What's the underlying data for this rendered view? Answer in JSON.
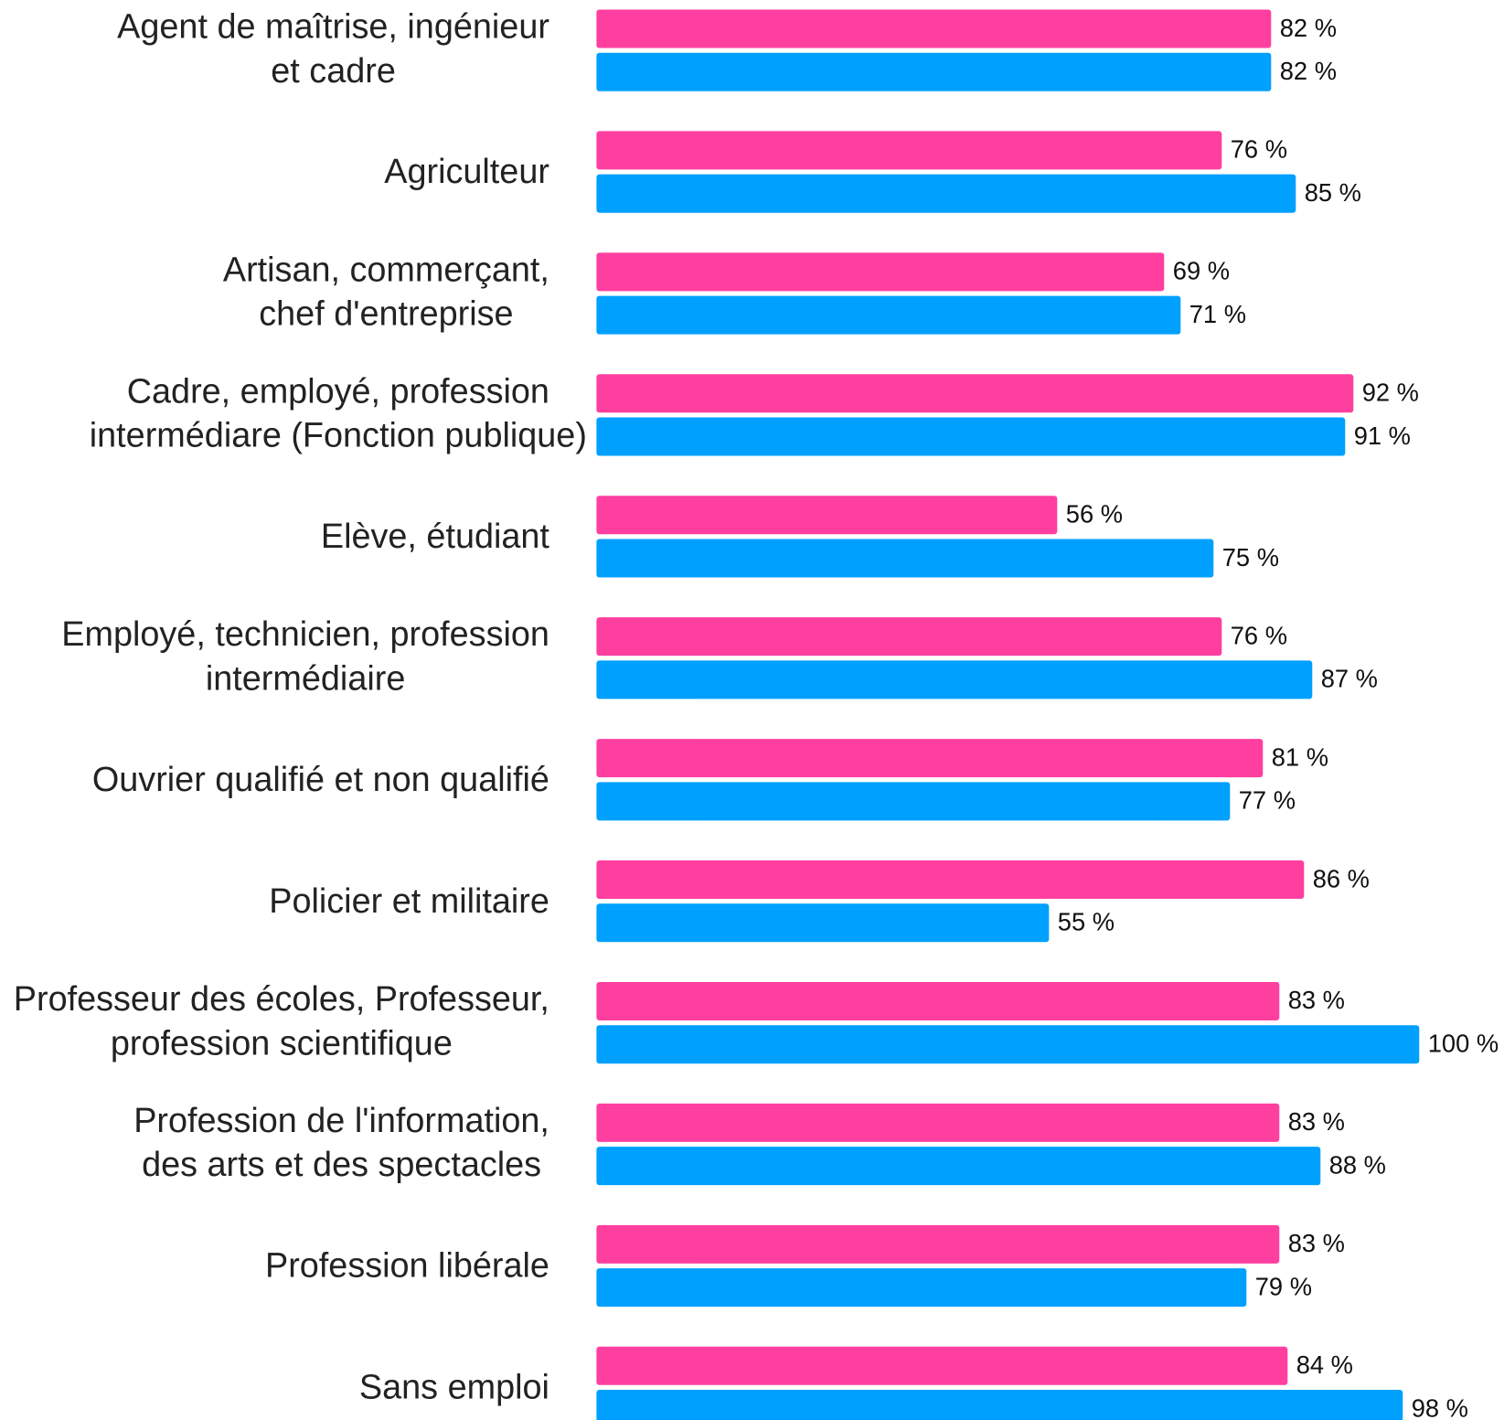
{
  "chart_data": {
    "type": "bar",
    "orientation": "horizontal",
    "categories": [
      [
        "Agent de maîtrise, ingénieur",
        "et cadre"
      ],
      [
        "Agriculteur"
      ],
      [
        "Artisan, commerçant,",
        "chef d'entreprise"
      ],
      [
        "Cadre, employé, profession",
        "intermédiare (Fonction publique)"
      ],
      [
        "Elève, étudiant"
      ],
      [
        "Employé, technicien, profession",
        "intermédiaire"
      ],
      [
        "Ouvrier qualifié et non qualifié"
      ],
      [
        "Policier et militaire"
      ],
      [
        "Professeur des écoles, Professeur,",
        "profession scientifique"
      ],
      [
        "Profession de l'information,",
        "des arts et des spectacles"
      ],
      [
        "Profession libérale"
      ],
      [
        "Sans emploi"
      ]
    ],
    "series": [
      {
        "color": "#ff3fa0",
        "values": [
          82,
          76,
          69,
          92,
          56,
          76,
          81,
          86,
          83,
          83,
          83,
          84
        ],
        "value_labels": [
          "82 %",
          "76 %",
          "69 %",
          "92 %",
          "56 %",
          "76 %",
          "81 %",
          "86 %",
          "83 %",
          "83 %",
          "83 %",
          "84 %"
        ]
      },
      {
        "color": "#00a0ff",
        "values": [
          82,
          85,
          71,
          91,
          75,
          87,
          77,
          55,
          100,
          88,
          79,
          98
        ],
        "value_labels": [
          "82 %",
          "85 %",
          "71 %",
          "91 %",
          "75 %",
          "87 %",
          "77 %",
          "55 %",
          "100 %",
          "88 %",
          "79 %",
          "98 %"
        ]
      }
    ],
    "xlim": [
      0,
      100
    ]
  }
}
